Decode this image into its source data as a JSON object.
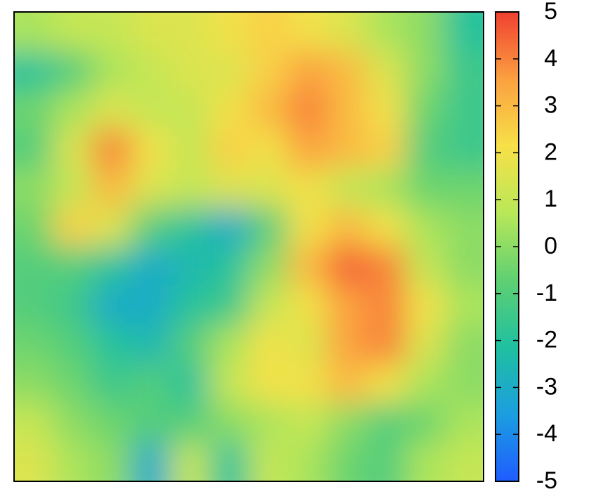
{
  "chart_data": {
    "type": "heatmap",
    "z": [
      [
        0.5,
        1,
        1,
        1.5,
        1.5,
        2,
        2.5,
        2,
        1.5,
        0.5,
        0,
        -2
      ],
      [
        -2,
        -1,
        0.5,
        1,
        1.5,
        1.5,
        2.5,
        3.5,
        3,
        1.5,
        0,
        -1.5
      ],
      [
        -0.5,
        0.5,
        1.5,
        1,
        1,
        2,
        3,
        4,
        3,
        2,
        -0.5,
        -1.5
      ],
      [
        -1,
        1.5,
        4,
        2,
        1,
        2.5,
        2,
        3.5,
        3,
        2.5,
        -1,
        -1.5
      ],
      [
        0,
        1,
        3,
        1.5,
        1,
        1.5,
        1.5,
        2,
        1,
        0.5,
        -0.5,
        -0.5
      ],
      [
        -0.5,
        2.5,
        1.5,
        -1,
        -2,
        -3,
        -1,
        2,
        3,
        2,
        0.5,
        0
      ],
      [
        -1,
        -1,
        -2,
        -3,
        -2.5,
        -2,
        0,
        3,
        4.5,
        4,
        1,
        0
      ],
      [
        -1,
        -1.5,
        -3,
        -3,
        -2,
        -1.5,
        1,
        2,
        3.5,
        4,
        2,
        0.5
      ],
      [
        -0.5,
        -1,
        -2,
        -2.5,
        -1,
        0.5,
        2,
        1.5,
        3.5,
        4,
        1.5,
        0
      ],
      [
        0,
        -0.5,
        -1.5,
        -1,
        -2,
        1,
        2,
        2,
        3,
        2,
        0.5,
        0
      ],
      [
        1,
        0,
        -0.5,
        -1,
        -1,
        0,
        0.5,
        1,
        0,
        -1,
        -0.5,
        0.5
      ],
      [
        1.5,
        0.5,
        0,
        -3,
        1,
        -2,
        1,
        0.5,
        -0.5,
        -1,
        0.5,
        1
      ]
    ],
    "zlim": [
      -5,
      5
    ],
    "zticks": [
      -5,
      -4,
      -3,
      -2,
      -1,
      0,
      1,
      2,
      3,
      4,
      5
    ],
    "colorscale": [
      "#1f5cff",
      "#1c9ee0",
      "#1fc0a0",
      "#5fd072",
      "#b8e858",
      "#f8e048",
      "#fba040",
      "#f04030"
    ]
  }
}
